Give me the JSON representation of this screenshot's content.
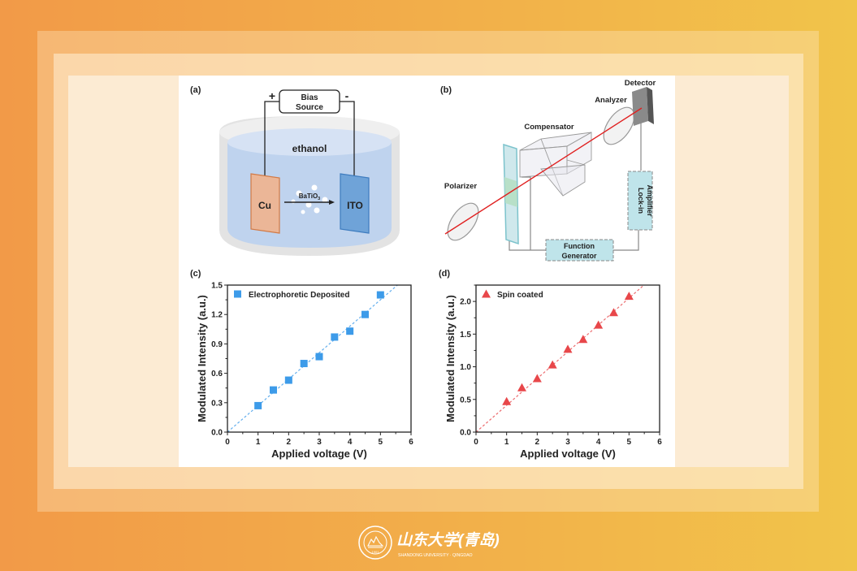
{
  "figure": {
    "panel_a": {
      "label": "(a)",
      "bias_source": [
        "Bias",
        "Source"
      ],
      "plus": "+",
      "minus": "-",
      "solvent": "ethanol",
      "anode": "Cu",
      "cathode": "ITO",
      "particles": "BaTiO",
      "particles_sub": "3"
    },
    "panel_b": {
      "label": "(b)",
      "detector": "Detector",
      "analyzer": "Analyzer",
      "compensator": "Compensator",
      "polarizer": "Polarizer",
      "lockin": [
        "Lock-in",
        "Amplifier"
      ],
      "function_gen": [
        "Function",
        "Generator"
      ]
    },
    "panel_c": {
      "label": "(c)"
    },
    "panel_d": {
      "label": "(d)"
    }
  },
  "footer": {
    "logo_cn": "山东大学(青岛)",
    "logo_en": "SHANDONG UNIVERSITY · QINGDAO",
    "seal_year": "1901"
  },
  "colors": {
    "series_c": "#3d9be9",
    "series_d": "#e8474a"
  },
  "chart_data": [
    {
      "type": "scatter",
      "panel": "(c)",
      "xlabel": "Applied voltage (V)",
      "ylabel": "Modulated Intensity (a.u.)",
      "xlim": [
        0,
        6
      ],
      "ylim": [
        0,
        1.5
      ],
      "xticks": [
        "0",
        "1",
        "2",
        "3",
        "4",
        "5",
        "6"
      ],
      "yticks": [
        "0.0",
        "0.3",
        "0.6",
        "0.9",
        "1.2",
        "1.5"
      ],
      "legend": "top-left",
      "fit": "linear dashed",
      "series": [
        {
          "name": "Electrophoretic Deposited",
          "marker": "square",
          "x": [
            1,
            1.5,
            2,
            2.5,
            3,
            3.5,
            4,
            4.5,
            5
          ],
          "y": [
            0.27,
            0.43,
            0.53,
            0.7,
            0.77,
            0.97,
            1.03,
            1.2,
            1.4
          ],
          "fit_slope": 0.27
        }
      ]
    },
    {
      "type": "scatter",
      "panel": "(d)",
      "xlabel": "Applied voltage (V)",
      "ylabel": "Modulated Intensity (a.u.)",
      "xlim": [
        0,
        6
      ],
      "ylim": [
        0,
        2.25
      ],
      "xticks": [
        "0",
        "1",
        "2",
        "3",
        "4",
        "5",
        "6"
      ],
      "yticks": [
        "0.0",
        "0.5",
        "1.0",
        "1.5",
        "2.0"
      ],
      "legend": "top-left",
      "fit": "linear dashed",
      "series": [
        {
          "name": "Spin coated",
          "marker": "triangle",
          "x": [
            1,
            1.5,
            2,
            2.5,
            3,
            3.5,
            4,
            4.5,
            5
          ],
          "y": [
            0.47,
            0.68,
            0.82,
            1.03,
            1.27,
            1.42,
            1.64,
            1.83,
            2.08
          ],
          "fit_slope": 0.41
        }
      ]
    }
  ]
}
